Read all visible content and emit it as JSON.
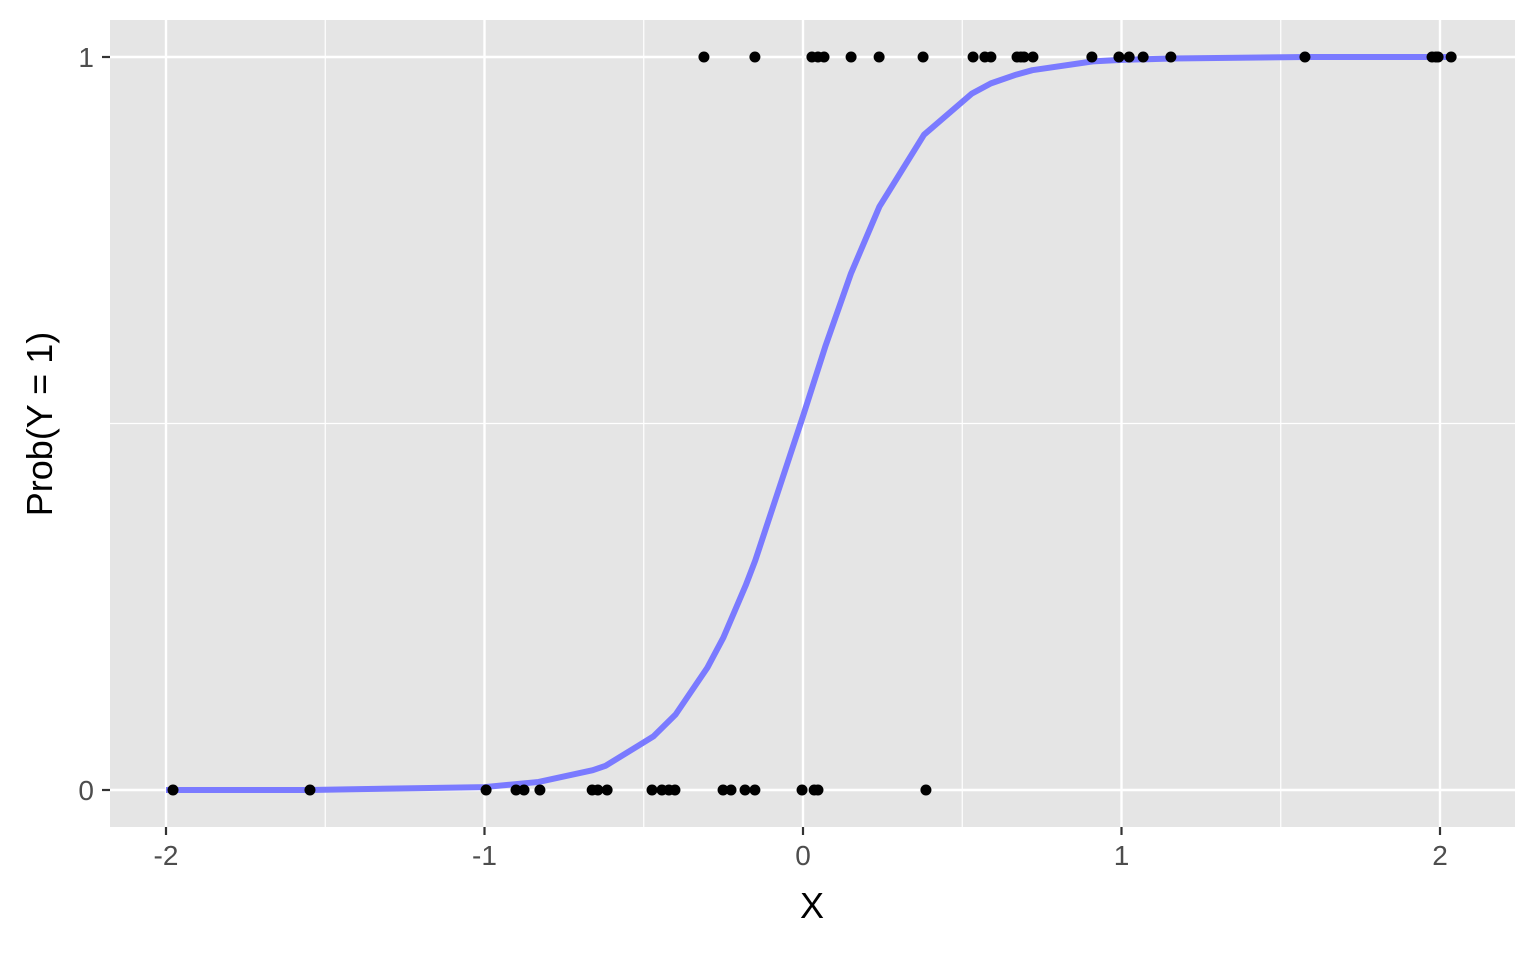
{
  "chart_data": {
    "type": "scatter",
    "xlabel": "X",
    "ylabel": "Prob(Y = 1)",
    "xlim": [
      -2.2,
      2.22
    ],
    "ylim": [
      -0.05,
      1.05
    ],
    "x_ticks": [
      -2,
      -1,
      0,
      1,
      2
    ],
    "x_tick_labels": [
      "-2",
      "-1",
      "0",
      "1",
      "2"
    ],
    "y_ticks": [
      0,
      1
    ],
    "y_tick_labels": [
      "0",
      "1"
    ],
    "grid": true,
    "panel_background": "#e5e5e5",
    "grid_color": "#ffffff",
    "points": {
      "color": "#000000",
      "x": [
        -0.311,
        -0.151,
        0.028,
        0.047,
        0.066,
        0.151,
        0.239,
        0.377,
        0.534,
        0.571,
        0.59,
        0.672,
        0.684,
        0.694,
        0.722,
        0.907,
        0.992,
        1.024,
        1.068,
        1.155,
        1.576,
        1.975,
        1.987,
        1.994,
        2.035,
        -1.978,
        -1.548,
        -0.995,
        -0.901,
        -0.876,
        -0.826,
        -0.662,
        -0.644,
        -0.615,
        -0.474,
        -0.443,
        -0.421,
        -0.402,
        -0.251,
        -0.226,
        -0.182,
        -0.151,
        -0.003,
        0.035,
        0.047,
        0.386
      ],
      "y": [
        1,
        1,
        1,
        1,
        1,
        1,
        1,
        1,
        1,
        1,
        1,
        1,
        1,
        1,
        1,
        1,
        1,
        1,
        1,
        1,
        1,
        1,
        1,
        1,
        1,
        0,
        0,
        0,
        0,
        0,
        0,
        0,
        0,
        0,
        0,
        0,
        0,
        0,
        0,
        0,
        0,
        0,
        0,
        0,
        0,
        0
      ]
    },
    "curve": {
      "color": "#7a7aff",
      "x": [
        -2,
        -1.55,
        -1,
        -0.83,
        -0.66,
        -0.62,
        -0.47,
        -0.4,
        -0.3,
        -0.25,
        -0.18,
        -0.15,
        0,
        0.07,
        0.15,
        0.24,
        0.38,
        0.53,
        0.59,
        0.67,
        0.72,
        0.91,
        1.0,
        1.16,
        1.58,
        2.04
      ],
      "y": [
        0.0,
        0.0,
        0.004,
        0.011,
        0.027,
        0.033,
        0.073,
        0.103,
        0.167,
        0.208,
        0.279,
        0.313,
        0.51,
        0.605,
        0.704,
        0.796,
        0.894,
        0.95,
        0.964,
        0.976,
        0.982,
        0.994,
        0.996,
        0.998,
        1.0,
        1.0
      ]
    }
  }
}
